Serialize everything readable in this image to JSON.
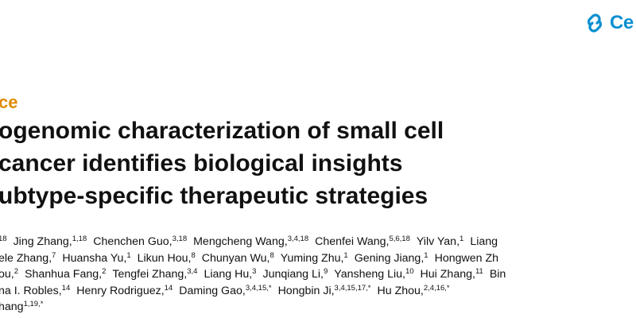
{
  "journal_logo": {
    "text": "Ce",
    "accent": "#0a8fd1"
  },
  "section_label": "ce",
  "title_lines": [
    "ogenomic characterization of small cell",
    "cancer identifies biological insights",
    "ubtype-specific therapeutic strategies"
  ],
  "author_lines": [
    [
      {
        "name": "",
        "aff": "18"
      },
      {
        "name": "Jing Zhang,",
        "aff": "1,18"
      },
      {
        "name": "Chenchen Guo,",
        "aff": "3,18"
      },
      {
        "name": "Mengcheng Wang,",
        "aff": "3,4,18"
      },
      {
        "name": "Chenfei Wang,",
        "aff": "5,6,18"
      },
      {
        "name": "Yilv Yan,",
        "aff": "1"
      },
      {
        "name": "Liang",
        "aff": ""
      }
    ],
    [
      {
        "name": "ele Zhang,",
        "aff": "7"
      },
      {
        "name": "Huansha Yu,",
        "aff": "1"
      },
      {
        "name": "Likun Hou,",
        "aff": "8"
      },
      {
        "name": "Chunyan Wu,",
        "aff": "8"
      },
      {
        "name": "Yuming Zhu,",
        "aff": "1"
      },
      {
        "name": "Gening Jiang,",
        "aff": "1"
      },
      {
        "name": "Hongwen Zh",
        "aff": ""
      }
    ],
    [
      {
        "name": "ou,",
        "aff": "2"
      },
      {
        "name": "Shanhua Fang,",
        "aff": "2"
      },
      {
        "name": "Tengfei Zhang,",
        "aff": "3,4"
      },
      {
        "name": "Liang Hu,",
        "aff": "3"
      },
      {
        "name": "Junqiang Li,",
        "aff": "9"
      },
      {
        "name": "Yansheng Liu,",
        "aff": "10"
      },
      {
        "name": "Hui Zhang,",
        "aff": "11"
      },
      {
        "name": "Bin",
        "aff": ""
      }
    ],
    [
      {
        "name": "na I. Robles,",
        "aff": "14"
      },
      {
        "name": "Henry Rodriguez,",
        "aff": "14"
      },
      {
        "name": "Daming Gao,",
        "aff": "3,4,15,*"
      },
      {
        "name": "Hongbin Ji,",
        "aff": "3,4,15,17,*"
      },
      {
        "name": "Hu Zhou,",
        "aff": "2,4,16,*"
      }
    ],
    [
      {
        "name": "hang",
        "aff": "1,19,*"
      }
    ]
  ]
}
